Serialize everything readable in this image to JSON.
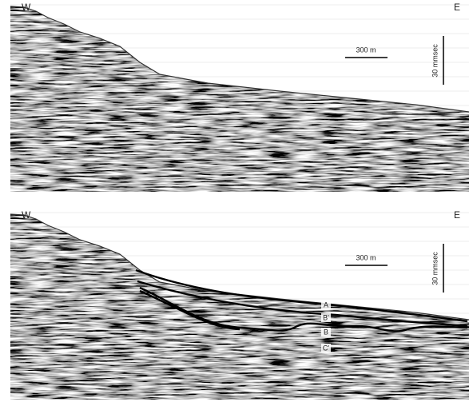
{
  "panels": [
    {
      "west": "W",
      "east": "E",
      "scale_length": "300 m",
      "scale_time": "30 mmsec"
    },
    {
      "west": "W",
      "east": "E",
      "scale_length": "300 m",
      "scale_time": "30 mmsec",
      "horizons": [
        "A",
        "B'",
        "B",
        "C'"
      ]
    }
  ]
}
